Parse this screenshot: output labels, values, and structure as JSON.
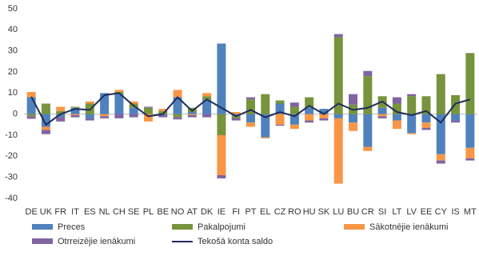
{
  "chart_data": {
    "type": "bar",
    "categories": [
      "DE",
      "UK",
      "FR",
      "IT",
      "ES",
      "NL",
      "CH",
      "SE",
      "PL",
      "BE",
      "NO",
      "AT",
      "DK",
      "IE",
      "FI",
      "PT",
      "EL",
      "CZ",
      "RO",
      "HU",
      "SK",
      "LU",
      "BU",
      "CR",
      "SI",
      "LT",
      "LV",
      "EE",
      "CY",
      "IS",
      "MT"
    ],
    "series": [
      {
        "name": "Preces",
        "color": "#4f81bd",
        "values": [
          8,
          -6,
          -1.5,
          3,
          -2,
          10,
          9.5,
          3,
          0,
          -0.5,
          8,
          1,
          7,
          33.5,
          -1,
          -4,
          -11,
          5,
          -5,
          3,
          2.5,
          -2,
          -4,
          -15.5,
          3,
          -3,
          -9,
          -4,
          -19,
          -3,
          -16
        ]
      },
      {
        "name": "Pakalpojumi",
        "color": "#77933c",
        "values": [
          -1,
          5,
          1.5,
          0.5,
          5,
          0,
          1,
          2,
          3,
          1.5,
          -1.5,
          2,
          1.5,
          -10,
          -1,
          7,
          9.5,
          1.5,
          3.5,
          5,
          0,
          36.5,
          4.5,
          18,
          5.5,
          5,
          8.5,
          8.5,
          19,
          9,
          29
        ]
      },
      {
        "name": "Sākotnējie ienākumi",
        "color": "#f79646",
        "values": [
          2.5,
          -1.5,
          2,
          -0.5,
          1,
          -1,
          1,
          1,
          -3.5,
          1,
          3.5,
          -0.5,
          1.5,
          -19,
          1,
          -2,
          -0.5,
          -5,
          -2,
          -3,
          -2,
          -31,
          -4,
          -2,
          -1,
          -4,
          -0.5,
          -2.5,
          -3,
          0,
          -5
        ]
      },
      {
        "name": "Otrreizējie ienākumi",
        "color": "#8064a2",
        "values": [
          -1.2,
          -2,
          -2,
          -1,
          -1,
          -1,
          -2,
          -1.5,
          0.5,
          -1,
          -1,
          -1,
          -1.5,
          -1.5,
          -1,
          1,
          0,
          -0.5,
          2,
          -1,
          -1,
          1.5,
          5,
          2.5,
          -1,
          3,
          1,
          -1,
          -1.5,
          -1,
          -1
        ]
      },
      {
        "name": "Tekošā konta saldo",
        "type": "line",
        "color": "#1f2d5a",
        "values": [
          8.3,
          -5,
          0,
          2.5,
          2,
          9,
          10,
          4,
          -1,
          0,
          8,
          1.5,
          7,
          3,
          -1,
          2,
          -1.5,
          1,
          -1,
          4,
          0,
          5,
          2,
          3,
          6,
          1,
          -0.5,
          1.5,
          -4,
          5,
          7
        ]
      }
    ],
    "ylim": [
      -40,
      50
    ],
    "yticks": [
      -40,
      -30,
      -20,
      -10,
      0,
      10,
      20,
      30,
      40,
      50
    ],
    "grid": false
  }
}
